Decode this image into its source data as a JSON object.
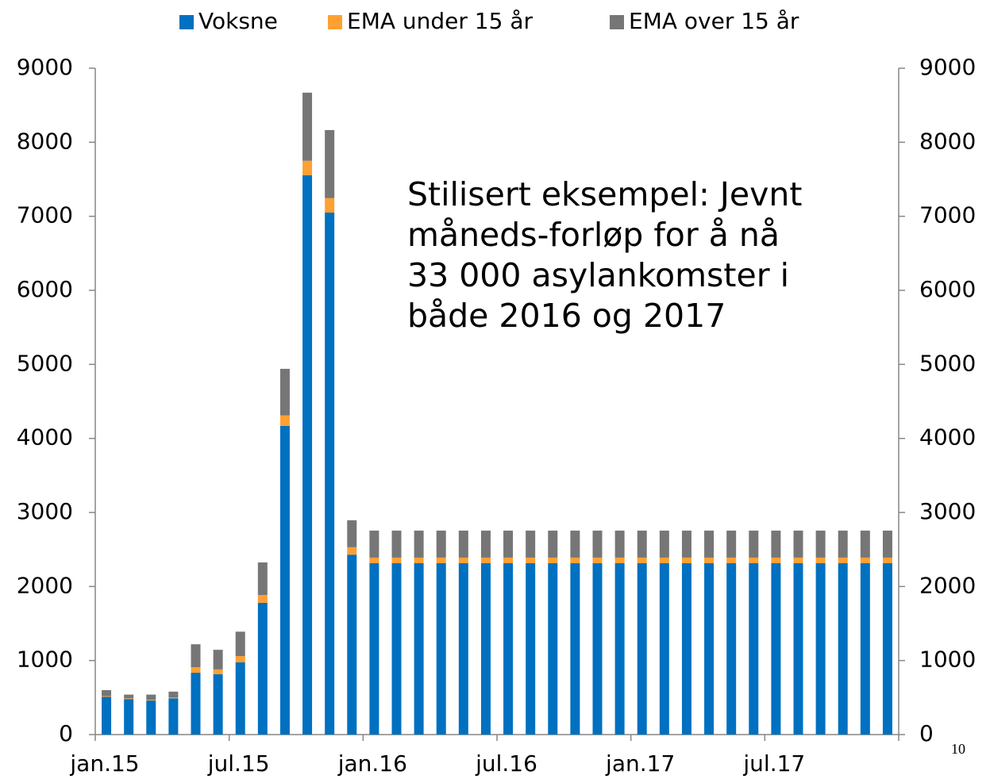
{
  "chart_data": {
    "type": "stacked_bar",
    "categories": [
      "jan.15",
      null,
      null,
      null,
      null,
      null,
      "jul.15",
      null,
      null,
      null,
      null,
      null,
      "jan.16",
      null,
      null,
      null,
      null,
      null,
      "jul.16",
      null,
      null,
      null,
      null,
      null,
      "jan.17",
      null,
      null,
      null,
      null,
      null,
      "jul.17",
      null,
      null,
      null,
      null,
      null
    ],
    "series": [
      {
        "name": "Voksne",
        "color": "#0070c0",
        "values": [
          510,
          480,
          460,
          490,
          835,
          815,
          975,
          1780,
          4170,
          7555,
          7050,
          2430,
          2315,
          2315,
          2315,
          2315,
          2315,
          2315,
          2315,
          2315,
          2315,
          2315,
          2315,
          2315,
          2315,
          2315,
          2315,
          2315,
          2315,
          2315,
          2315,
          2315,
          2315,
          2315,
          2315,
          2315
        ]
      },
      {
        "name": "EMA under 15 år",
        "color": "#ffa033",
        "values": [
          10,
          10,
          10,
          10,
          75,
          65,
          85,
          105,
          140,
          195,
          195,
          100,
          75,
          75,
          75,
          75,
          75,
          75,
          75,
          75,
          75,
          75,
          75,
          75,
          75,
          75,
          75,
          75,
          75,
          75,
          75,
          75,
          75,
          75,
          75,
          75
        ]
      },
      {
        "name": "EMA over 15 år",
        "color": "#767676",
        "values": [
          80,
          50,
          70,
          80,
          310,
          265,
          330,
          440,
          630,
          920,
          920,
          365,
          365,
          365,
          365,
          365,
          365,
          365,
          365,
          365,
          365,
          365,
          365,
          365,
          365,
          365,
          365,
          365,
          365,
          365,
          365,
          365,
          365,
          365,
          365,
          365
        ]
      }
    ],
    "ylim": [
      0,
      9000
    ],
    "yticks": [
      0,
      1000,
      2000,
      3000,
      4000,
      5000,
      6000,
      7000,
      8000,
      9000
    ],
    "y2lim": [
      0,
      9000
    ],
    "y2ticks": [
      0,
      1000,
      2000,
      3000,
      4000,
      5000,
      6000,
      7000,
      8000,
      9000
    ],
    "annotation": [
      "Stilisert eksempel: Jevnt",
      "måneds-forløp for å nå",
      "33 000 asylankomster i",
      "både 2016 og 2017"
    ],
    "page_number": "10",
    "legend": "top"
  }
}
